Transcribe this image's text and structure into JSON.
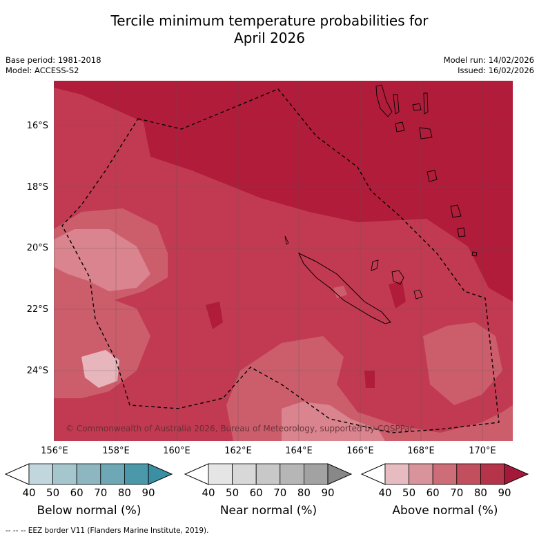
{
  "title": {
    "line1": "Tercile minimum temperature probabilities for",
    "line2": "April 2026"
  },
  "meta_left": {
    "base_period": "Base period: 1981-2018",
    "model": "Model: ACCESS-S2"
  },
  "meta_right": {
    "model_run": "Model run: 14/02/2026",
    "issued": "Issued: 16/02/2026"
  },
  "map": {
    "lat_ticks": [
      "16°S",
      "18°S",
      "20°S",
      "22°S",
      "24°S"
    ],
    "lon_ticks": [
      "156°E",
      "158°E",
      "160°E",
      "162°E",
      "164°E",
      "166°E",
      "168°E",
      "170°E"
    ],
    "copyright": "© Commonwealth of Australia 2026, Bureau of Meteorology, supported by COSPPac",
    "colors": {
      "above_80_90": "#b01c3a",
      "above_70_80": "#c23a52",
      "above_60_70": "#cc5e6c",
      "above_50_60": "#d9848e",
      "above_40_50": "#e7b5bc"
    }
  },
  "colorbars": [
    {
      "title": "Below normal (%)",
      "labels": [
        "40",
        "50",
        "60",
        "70",
        "80",
        "90"
      ],
      "colors": [
        "#c2d6dd",
        "#a6c6cd",
        "#8db6c1",
        "#6ea8b6",
        "#4b98aa",
        "#3a8fa3"
      ]
    },
    {
      "title": "Near normal (%)",
      "labels": [
        "40",
        "50",
        "60",
        "70",
        "80",
        "90"
      ],
      "colors": [
        "#e5e5e5",
        "#d8d8d8",
        "#c8c8c8",
        "#b6b6b6",
        "#a2a2a2",
        "#888888"
      ]
    },
    {
      "title": "Above normal (%)",
      "labels": [
        "40",
        "50",
        "60",
        "70",
        "80",
        "90"
      ],
      "colors": [
        "#e6bcc1",
        "#d9939b",
        "#cc6d77",
        "#c14f5e",
        "#b53449",
        "#a4193a"
      ]
    }
  ],
  "footnote": "--  --  -- EEZ border V11 (Flanders Marine Institute, 2019)."
}
